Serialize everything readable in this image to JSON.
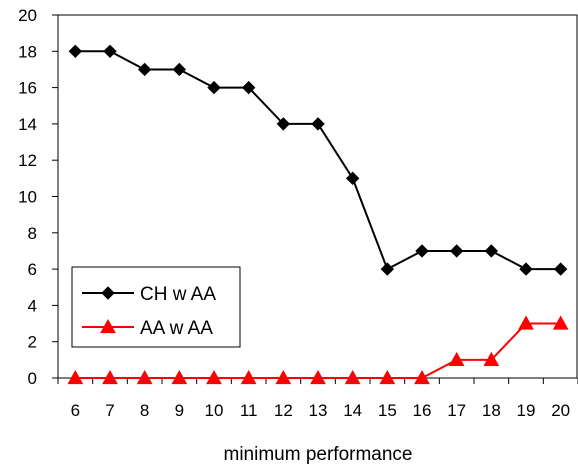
{
  "chart_data": {
    "type": "line",
    "title": "",
    "xlabel": "minimum performance",
    "ylabel": "",
    "x": [
      6,
      7,
      8,
      9,
      10,
      11,
      12,
      13,
      14,
      15,
      16,
      17,
      18,
      19,
      20
    ],
    "ylim": [
      0,
      20
    ],
    "yticks": [
      0,
      2,
      4,
      6,
      8,
      10,
      12,
      14,
      16,
      18,
      20
    ],
    "grid": false,
    "legend_position": "bottom-left",
    "series": [
      {
        "name": "CH w AA",
        "color": "#000000",
        "marker": "diamond",
        "values": [
          18,
          18,
          17,
          17,
          16,
          16,
          14,
          14,
          11,
          6,
          7,
          7,
          7,
          6,
          6
        ]
      },
      {
        "name": "AA w AA",
        "color": "#ff0000",
        "marker": "triangle",
        "values": [
          0,
          0,
          0,
          0,
          0,
          0,
          0,
          0,
          0,
          0,
          0,
          1,
          1,
          3,
          3
        ]
      }
    ]
  }
}
